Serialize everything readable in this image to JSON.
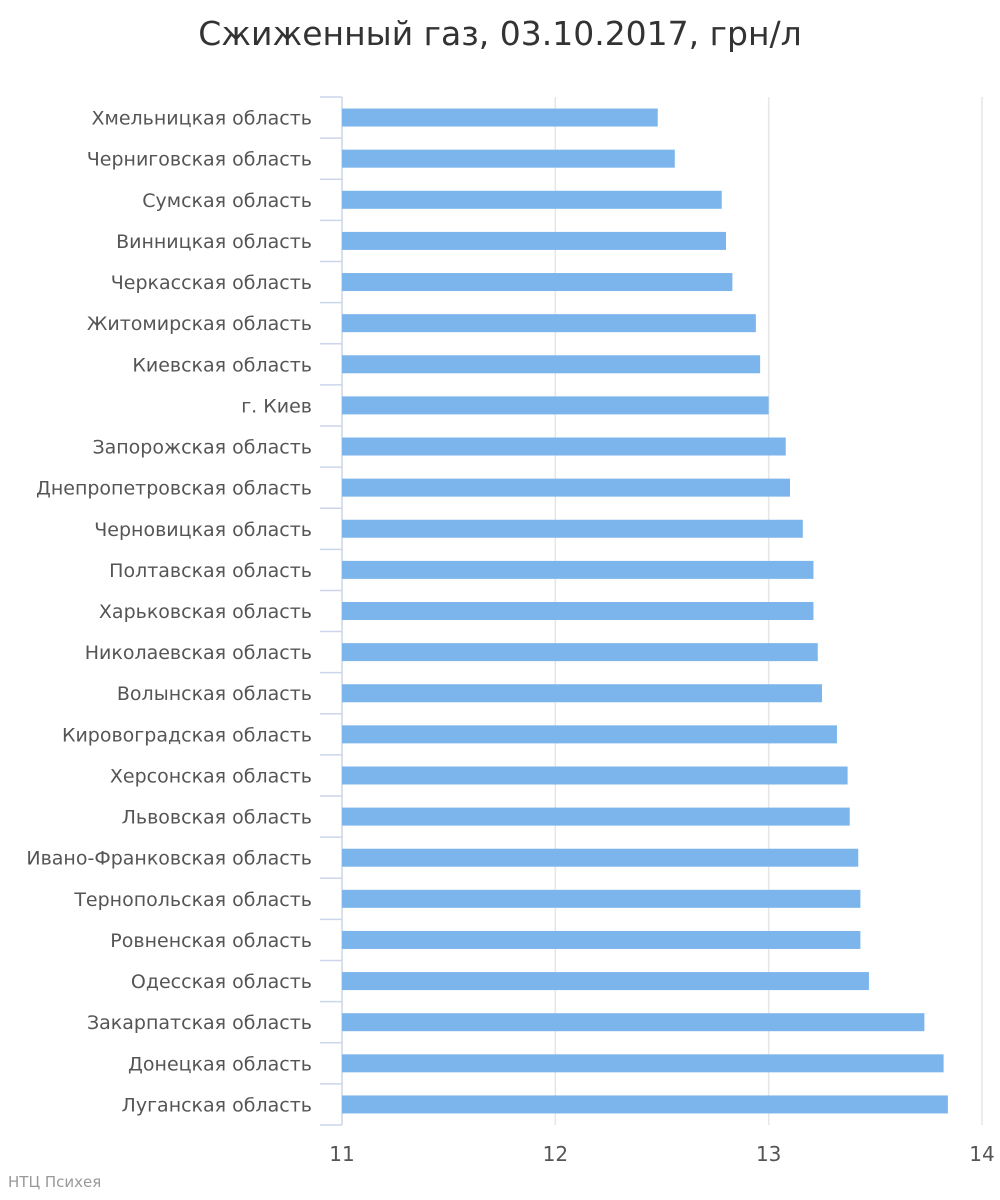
{
  "chart_data": {
    "type": "bar",
    "orientation": "horizontal",
    "title": "Сжиженный газ, 03.10.2017, грн/л",
    "xlabel": "",
    "ylabel": "",
    "xlim": [
      11,
      14
    ],
    "xticks": [
      "11",
      "12",
      "13",
      "14"
    ],
    "grid": true,
    "colors": {
      "bar": "#7cb5ec",
      "grid": "#e6e6e6",
      "axis": "#ccd6eb",
      "text": "#555555"
    },
    "categories": [
      "Хмельницкая область",
      "Черниговская область",
      "Сумская область",
      "Винницкая область",
      "Черкасская область",
      "Житомирская область",
      "Киевская область",
      "г. Киев",
      "Запорожская область",
      "Днепропетровская область",
      "Черновицкая область",
      "Полтавская область",
      "Харьковская область",
      "Николаевская область",
      "Волынская область",
      "Кировоградская область",
      "Херсонская область",
      "Львовская область",
      "Ивано-Франковская область",
      "Тернопольская область",
      "Ровненская область",
      "Одесская область",
      "Закарпатская область",
      "Донецкая область",
      "Луганская область"
    ],
    "values": [
      12.48,
      12.56,
      12.78,
      12.8,
      12.83,
      12.94,
      12.96,
      13.0,
      13.08,
      13.1,
      13.16,
      13.21,
      13.21,
      13.23,
      13.25,
      13.32,
      13.37,
      13.38,
      13.42,
      13.43,
      13.43,
      13.47,
      13.73,
      13.82,
      13.84
    ]
  },
  "credit": "НТЦ Психея"
}
